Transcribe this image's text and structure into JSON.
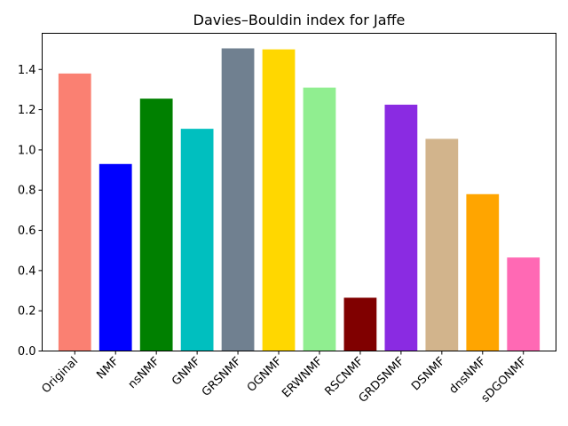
{
  "chart_data": {
    "type": "bar",
    "title": "Davies–Bouldin index for Jaffe",
    "xlabel": "",
    "ylabel": "",
    "categories": [
      "Original",
      "NMF",
      "nsNMF",
      "GNMF",
      "GRSNMF",
      "OGNMF",
      "ERWNMF",
      "RSCNMF",
      "GRDSNMF",
      "DSNMF",
      "dnsNMF",
      "sDGONMF"
    ],
    "values": [
      1.38,
      0.93,
      1.255,
      1.105,
      1.505,
      1.5,
      1.31,
      0.265,
      1.225,
      1.055,
      0.78,
      0.465
    ],
    "colors": [
      "#fa8072",
      "#0000ff",
      "#008000",
      "#00bfbf",
      "#708090",
      "#ffd700",
      "#90ee90",
      "#800000",
      "#8a2be2",
      "#d2b48c",
      "#ffa500",
      "#ff69b4"
    ],
    "ylim": [
      0,
      1.58
    ],
    "yticks": [
      "0.0",
      "0.2",
      "0.4",
      "0.6",
      "0.8",
      "1.0",
      "1.2",
      "1.4"
    ],
    "grid": false,
    "legend": "none"
  }
}
